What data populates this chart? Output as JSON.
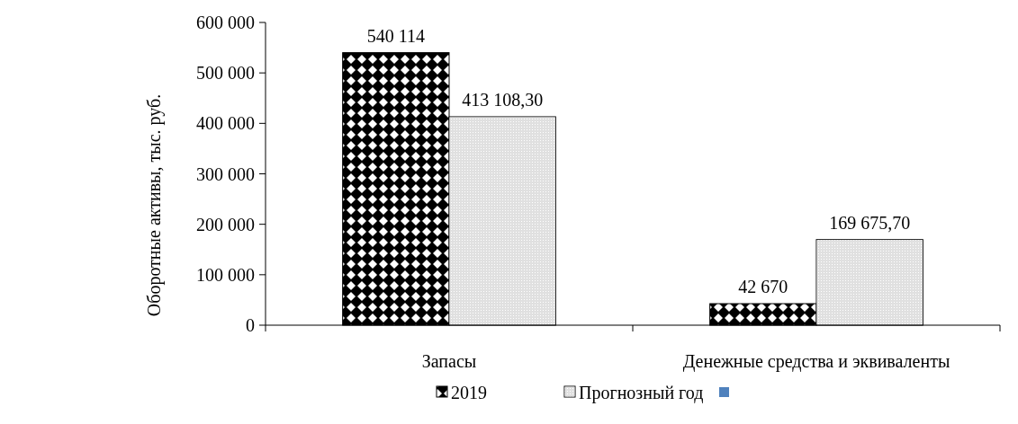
{
  "chart_data": {
    "type": "bar",
    "ylabel": "Оборотные активы, тыс. руб.",
    "categories": [
      "Запасы",
      "Денежные средства и эквиваленты"
    ],
    "series": [
      {
        "name": "2019",
        "color": "#000000",
        "values": [
          540114,
          42670
        ],
        "value_labels": [
          "540 114",
          "42 670"
        ]
      },
      {
        "name": "Прогнозный год",
        "color": "#e0e0e0",
        "values": [
          413108.3,
          169675.7
        ],
        "value_labels": [
          "413 108,30",
          "169 675,70"
        ]
      }
    ],
    "ylim": [
      0,
      600000
    ],
    "yticks": [
      {
        "value": 0,
        "label": "0"
      },
      {
        "value": 100000,
        "label": "100 000"
      },
      {
        "value": 200000,
        "label": "200 000"
      },
      {
        "value": 300000,
        "label": "300 000"
      },
      {
        "value": 400000,
        "label": "400 000"
      },
      {
        "value": 500000,
        "label": "500 000"
      },
      {
        "value": 600000,
        "label": "600 000"
      }
    ],
    "legend": "bottom",
    "grid": false
  }
}
